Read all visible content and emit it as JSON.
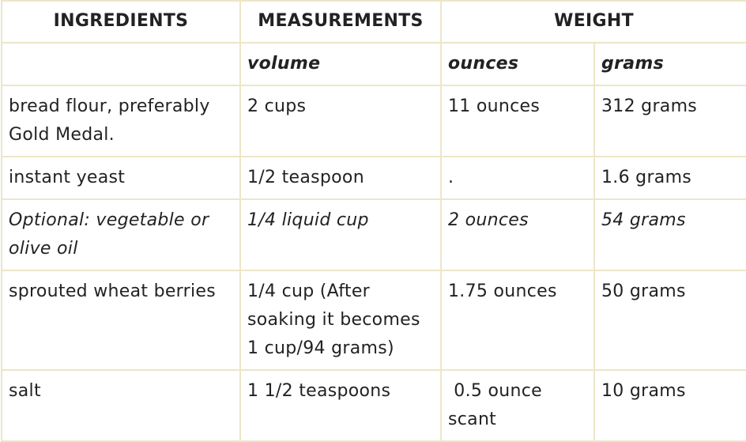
{
  "table": {
    "headers": {
      "ingredients": "INGREDIENTS",
      "measurements": "MEASUREMENTS",
      "weight": "WEIGHT"
    },
    "subheaders": {
      "ingredients": "",
      "volume": "volume",
      "ounces": "ounces",
      "grams": "grams"
    },
    "rows": [
      {
        "ingredient": "bread flour, preferably Gold Medal.",
        "volume": "2 cups",
        "ounces": "11 ounces",
        "grams": "312 grams"
      },
      {
        "ingredient": "instant yeast",
        "volume": "1/2 teaspoon",
        "ounces": ".",
        "grams": "1.6 grams"
      },
      {
        "ingredient": "Optional: vegetable or olive oil",
        "volume": "1/4 liquid cup",
        "ounces": "2 ounces",
        "grams": "54 grams"
      },
      {
        "ingredient": "sprouted wheat berries",
        "volume": "1/4 cup (After soaking it becomes 1 cup/94 grams)",
        "ounces": "1.75 ounces",
        "grams": "50 grams"
      },
      {
        "ingredient": "salt",
        "volume": "1 1/2 teaspoons",
        "ounces": " 0.5 ounce scant",
        "grams": "10 grams"
      }
    ]
  },
  "colors": {
    "border": "#ece6c8",
    "text": "#222222"
  }
}
